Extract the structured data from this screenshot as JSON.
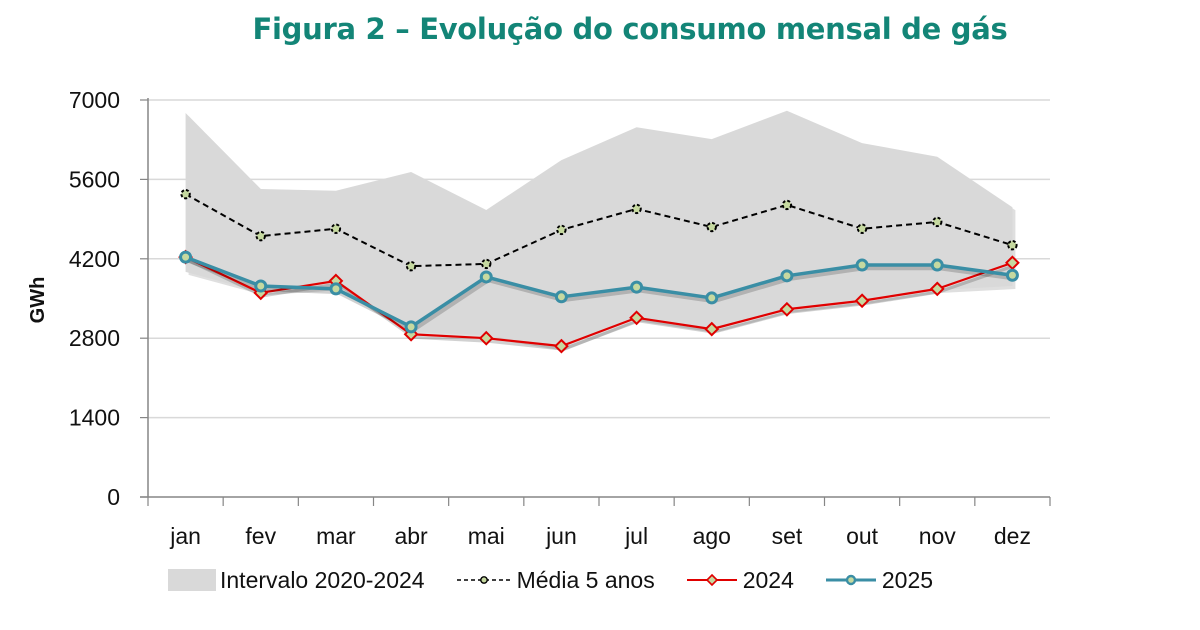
{
  "chart_data": {
    "type": "line",
    "title": "Figura 2 – Evolução do consumo mensal de gás",
    "xlabel": "",
    "ylabel": "GWh",
    "ylim": [
      0,
      7000
    ],
    "yticks": [
      0,
      1400,
      2800,
      4200,
      5600,
      7000
    ],
    "grid": true,
    "legend_position": "bottom",
    "categories": [
      "jan",
      "fev",
      "mar",
      "abr",
      "mai",
      "jun",
      "jul",
      "ago",
      "set",
      "out",
      "nov",
      "dez"
    ],
    "band": {
      "name": "Intervalo 2020-2024",
      "color": "#d9d9d9",
      "upper": [
        6770,
        5430,
        5400,
        5730,
        5060,
        5940,
        6520,
        6310,
        6810,
        6240,
        6000,
        5110
      ],
      "lower": [
        3970,
        3610,
        3700,
        2910,
        2850,
        2630,
        3150,
        2950,
        3300,
        3450,
        3650,
        3720
      ]
    },
    "series": [
      {
        "name": "Média 5 anos",
        "color": "#000000",
        "marker": "circle",
        "dashed": true,
        "values": [
          5340,
          4600,
          4730,
          4070,
          4110,
          4710,
          5080,
          4760,
          5150,
          4730,
          4850,
          4440
        ]
      },
      {
        "name": "2024",
        "color": "#e00000",
        "marker": "diamond",
        "dashed": false,
        "values": [
          4230,
          3600,
          3810,
          2870,
          2800,
          2660,
          3160,
          2960,
          3310,
          3460,
          3670,
          4130
        ]
      },
      {
        "name": "2025",
        "color": "#3a8ea5",
        "marker": "circle",
        "dashed": false,
        "values": [
          4230,
          3720,
          3670,
          3000,
          3880,
          3530,
          3700,
          3510,
          3900,
          4090,
          4090,
          3910
        ]
      }
    ]
  },
  "colors": {
    "title": "#138577",
    "marker_fill": "#c6d9a0",
    "grid": "#d9d9d9",
    "axis": "#868686"
  },
  "legend": {
    "band_label": "Intervalo 2020-2024",
    "avg_label": "Média 5 anos",
    "y2024_label": "2024",
    "y2025_label": "2025"
  }
}
